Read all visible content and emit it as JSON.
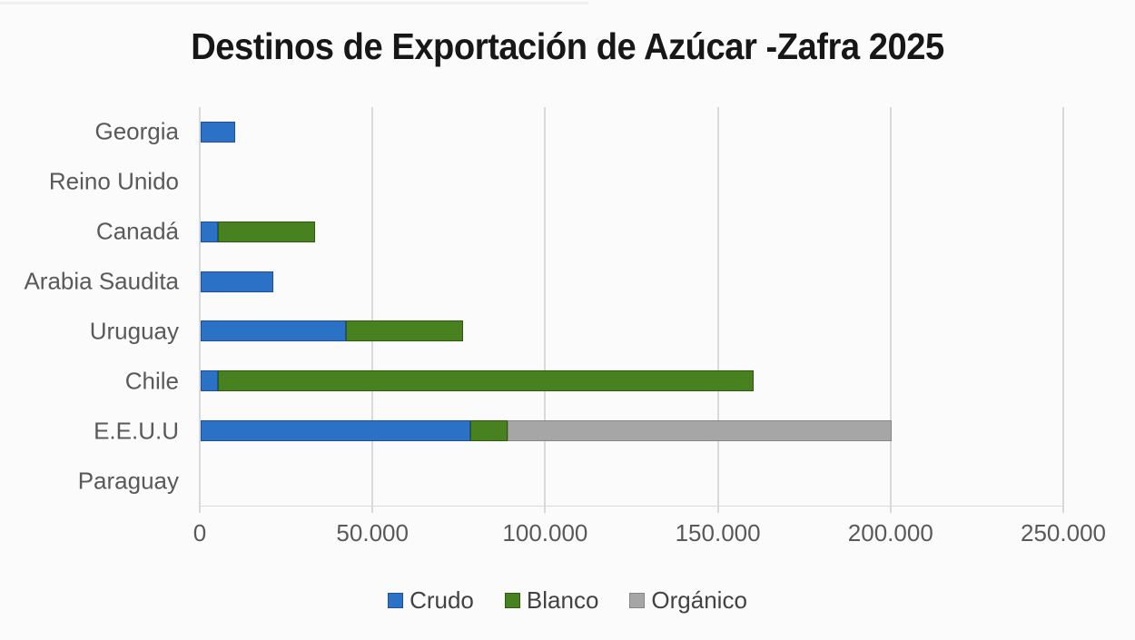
{
  "page": {
    "background": "#FBFBFB"
  },
  "chart_data": {
    "type": "bar",
    "orientation": "horizontal",
    "stacked": true,
    "title": "Destinos de Exportación de Azúcar -Zafra 2025",
    "categories": [
      "Georgia",
      "Reino Unido",
      "Canadá",
      "Arabia Saudita",
      "Uruguay",
      "Chile",
      "E.E.U.U",
      "Paraguay"
    ],
    "series": [
      {
        "name": "Crudo",
        "color": "#2B71C5",
        "border_color": "#1C4F9C",
        "values": [
          10000,
          0,
          5000,
          21000,
          42000,
          5000,
          78000,
          0
        ]
      },
      {
        "name": "Blanco",
        "color": "#48811F",
        "border_color": "#2E5A0E",
        "values": [
          0,
          0,
          28000,
          0,
          34000,
          155000,
          11000,
          0
        ]
      },
      {
        "name": "Orgánico",
        "color": "#A6A6A6",
        "border_color": "#868686",
        "values": [
          0,
          0,
          0,
          0,
          0,
          0,
          111000,
          0
        ]
      }
    ],
    "category_totals": [
      10000,
      0,
      33000,
      21000,
      76000,
      160000,
      200000,
      0
    ],
    "xlim": [
      0,
      250000
    ],
    "x_ticks": [
      {
        "value": 0,
        "label": "0"
      },
      {
        "value": 50000,
        "label": "50.000"
      },
      {
        "value": 100000,
        "label": "100.000"
      },
      {
        "value": 150000,
        "label": "150.000"
      },
      {
        "value": 200000,
        "label": "200.000"
      },
      {
        "value": 250000,
        "label": "250.000"
      }
    ],
    "grid": true,
    "gridline_color": "#D9D9D9",
    "axis_label_color": "#595959",
    "title_color": "#171717",
    "legend_position": "bottom",
    "legend_labels": [
      "Crudo",
      "Blanco",
      "Orgánico"
    ]
  }
}
